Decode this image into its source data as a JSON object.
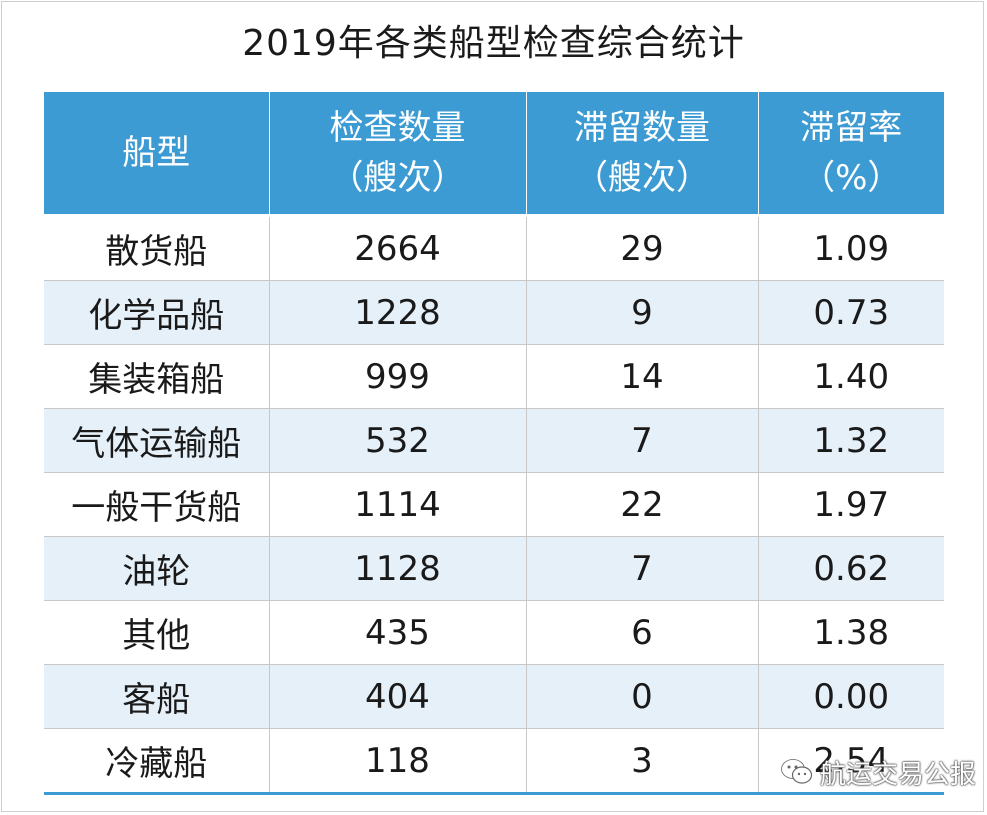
{
  "chart_data": {
    "type": "table",
    "title": "2019年各类船型检查综合统计",
    "columns": [
      {
        "line1": "船型",
        "line2": ""
      },
      {
        "line1": "检查数量",
        "line2": "（艘次）"
      },
      {
        "line1": "滞留数量",
        "line2": "（艘次）"
      },
      {
        "line1": "滞留率",
        "line2": "（%）"
      }
    ],
    "rows": [
      [
        "散货船",
        "2664",
        "29",
        "1.09"
      ],
      [
        "化学品船",
        "1228",
        "9",
        "0.73"
      ],
      [
        "集装箱船",
        "999",
        "14",
        "1.40"
      ],
      [
        "气体运输船",
        "532",
        "7",
        "1.32"
      ],
      [
        "一般干货船",
        "1114",
        "22",
        "1.97"
      ],
      [
        "油轮",
        "1128",
        "7",
        "0.62"
      ],
      [
        "其他",
        "435",
        "6",
        "1.38"
      ],
      [
        "客船",
        "404",
        "0",
        "0.00"
      ],
      [
        "冷藏船",
        "118",
        "3",
        "2.54"
      ]
    ]
  },
  "colors": {
    "header_bg": "#3d9bd3",
    "stripe_bg": "#e6f0f9",
    "text": "#1a1a1a"
  },
  "watermark": {
    "icon": "wechat-icon",
    "text": "航运交易公报"
  }
}
